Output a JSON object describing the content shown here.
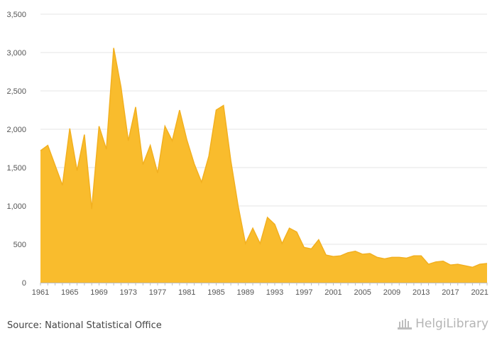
{
  "chart_data": {
    "type": "area",
    "title": "",
    "xlabel": "",
    "ylabel": "",
    "ylim": [
      0,
      3500
    ],
    "xlim": [
      1961,
      2022
    ],
    "grid": true,
    "color": "#f9bc2d",
    "line_color": "#f2b020",
    "yticks": [
      "0",
      "500",
      "1,000",
      "1,500",
      "2,000",
      "2,500",
      "3,000",
      "3,500"
    ],
    "ytick_values": [
      0,
      500,
      1000,
      1500,
      2000,
      2500,
      3000,
      3500
    ],
    "xticks": [
      "1961",
      "1965",
      "1969",
      "1973",
      "1977",
      "1981",
      "1985",
      "1989",
      "1993",
      "1997",
      "2001",
      "2005",
      "2009",
      "2013",
      "2017",
      "2021"
    ],
    "xtick_values": [
      1961,
      1965,
      1969,
      1973,
      1977,
      1981,
      1985,
      1989,
      1993,
      1997,
      2001,
      2005,
      2009,
      2013,
      2017,
      2021
    ],
    "x": [
      1961,
      1962,
      1963,
      1964,
      1965,
      1966,
      1967,
      1968,
      1969,
      1970,
      1971,
      1972,
      1973,
      1974,
      1975,
      1976,
      1977,
      1978,
      1979,
      1980,
      1981,
      1982,
      1983,
      1984,
      1985,
      1986,
      1987,
      1988,
      1989,
      1990,
      1991,
      1992,
      1993,
      1994,
      1995,
      1996,
      1997,
      1998,
      1999,
      2000,
      2001,
      2002,
      2003,
      2004,
      2005,
      2006,
      2007,
      2008,
      2009,
      2010,
      2011,
      2012,
      2013,
      2014,
      2015,
      2016,
      2017,
      2018,
      2019,
      2020,
      2021,
      2022
    ],
    "values": [
      1720,
      1790,
      1530,
      1270,
      2010,
      1460,
      1930,
      960,
      2040,
      1740,
      3060,
      2550,
      1850,
      2290,
      1540,
      1790,
      1430,
      2040,
      1850,
      2250,
      1860,
      1550,
      1310,
      1650,
      2250,
      2310,
      1590,
      1000,
      510,
      710,
      510,
      850,
      760,
      510,
      710,
      660,
      460,
      440,
      560,
      360,
      340,
      350,
      390,
      410,
      370,
      380,
      330,
      310,
      330,
      330,
      320,
      350,
      350,
      240,
      270,
      280,
      230,
      240,
      220,
      200,
      240,
      250
    ]
  },
  "footer": {
    "source": "Source: National Statistical Office",
    "brand": "HelgiLibrary"
  }
}
